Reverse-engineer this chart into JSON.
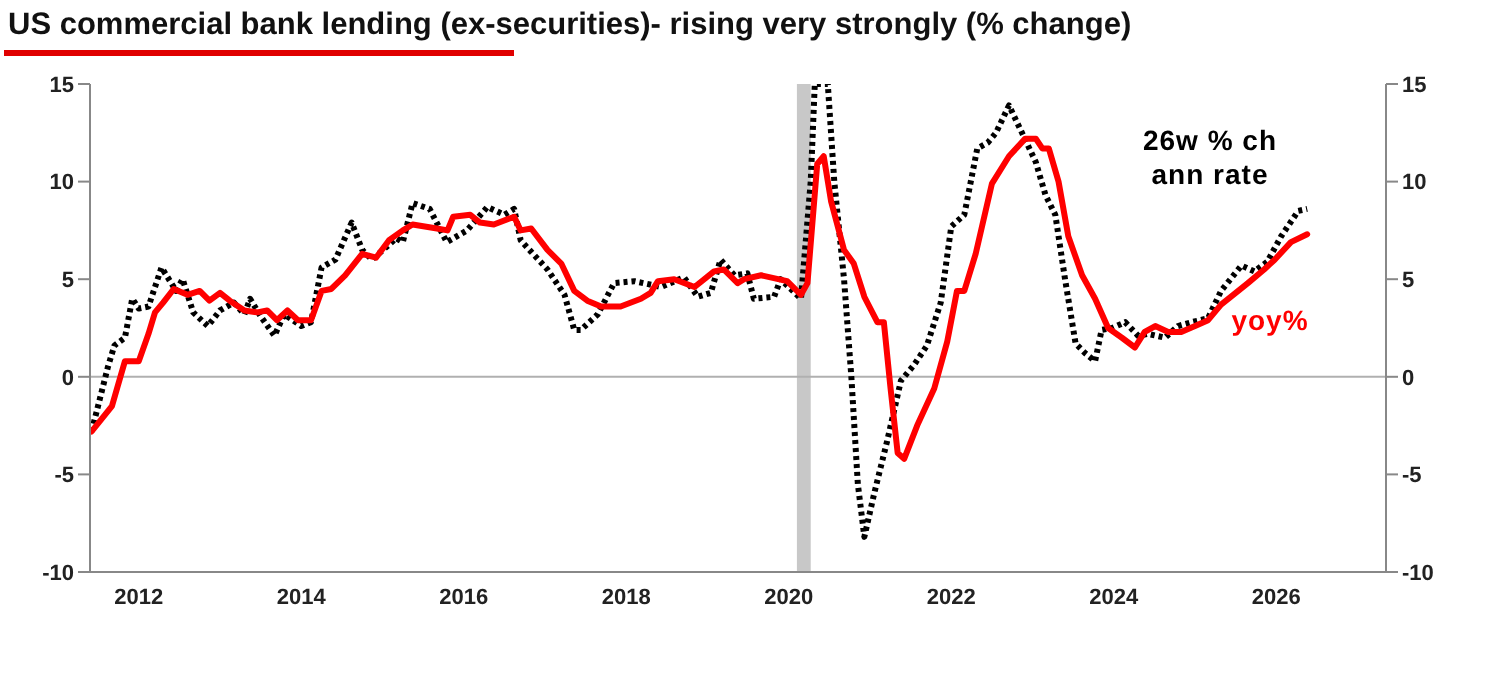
{
  "chart_data": {
    "type": "line",
    "title": "US commercial bank lending (ex-securities)- rising very strongly (% change)",
    "xlim": [
      2011.4,
      2027.35
    ],
    "xticks": [
      2012,
      2014,
      2016,
      2018,
      2020,
      2022,
      2024,
      2026
    ],
    "ylim": [
      -10,
      15
    ],
    "yticks": [
      -10,
      -5,
      0,
      5,
      10,
      15
    ],
    "y2lim": [
      -10,
      15
    ],
    "y2ticks": [
      -10,
      -5,
      0,
      5,
      10,
      15
    ],
    "legend": false,
    "marker": "none",
    "ref_lines": [
      {
        "axis": "y",
        "value": 0,
        "color": "#b0b0b0"
      }
    ],
    "bands": [
      {
        "axis": "x",
        "from": 2020.1,
        "to": 2020.27,
        "color": "#c8c8c8"
      }
    ],
    "series": [
      {
        "name": "26w % ch ann rate",
        "color": "#000000",
        "line_style": "dotted",
        "x": [
          2011.42,
          2011.62,
          2011.7,
          2011.83,
          2011.92,
          2012.0,
          2012.12,
          2012.28,
          2012.46,
          2012.54,
          2012.67,
          2012.85,
          2013.0,
          2013.17,
          2013.3,
          2013.37,
          2013.5,
          2013.67,
          2013.79,
          2014.0,
          2014.12,
          2014.25,
          2014.42,
          2014.62,
          2014.75,
          2014.87,
          2015.17,
          2015.25,
          2015.37,
          2015.58,
          2015.79,
          2016.04,
          2016.29,
          2016.5,
          2016.62,
          2016.7,
          2016.83,
          2017.03,
          2017.24,
          2017.36,
          2017.44,
          2017.65,
          2017.85,
          2018.1,
          2018.43,
          2018.71,
          2018.88,
          2019.04,
          2019.16,
          2019.33,
          2019.49,
          2019.57,
          2019.82,
          2019.9,
          2020.15,
          2020.27,
          2020.32,
          2020.48,
          2020.56,
          2020.68,
          2020.77,
          2020.85,
          2020.93,
          2021.05,
          2021.21,
          2021.38,
          2021.54,
          2021.7,
          2021.87,
          2022.0,
          2022.16,
          2022.32,
          2022.45,
          2022.55,
          2022.71,
          2022.87,
          2023.04,
          2023.16,
          2023.28,
          2023.4,
          2023.53,
          2023.65,
          2023.77,
          2023.85,
          2023.98,
          2024.14,
          2024.3,
          2024.42,
          2024.63,
          2024.79,
          2024.96,
          2025.16,
          2025.32,
          2025.57,
          2025.73,
          2025.89,
          2026.06,
          2026.27,
          2026.38
        ],
        "values": [
          -2.8,
          0.5,
          1.6,
          2.0,
          4.0,
          3.5,
          3.6,
          5.6,
          4.4,
          5.0,
          3.3,
          2.6,
          3.4,
          3.8,
          3.2,
          4.0,
          3.1,
          2.1,
          3.2,
          2.6,
          2.8,
          5.6,
          6.0,
          7.9,
          6.5,
          6.0,
          7.1,
          6.9,
          8.9,
          8.6,
          6.9,
          7.5,
          8.7,
          8.3,
          8.6,
          7.0,
          6.4,
          5.5,
          4.2,
          2.4,
          2.4,
          3.2,
          4.8,
          4.9,
          4.6,
          5.1,
          4.1,
          4.3,
          6.0,
          5.2,
          5.3,
          4.0,
          4.1,
          5.0,
          4.0,
          10.0,
          15,
          15,
          10.0,
          5.0,
          0,
          -5.5,
          -8.2,
          -6.0,
          -3.3,
          -0.2,
          0.6,
          1.6,
          3.8,
          7.7,
          8.3,
          11.7,
          12.0,
          12.5,
          13.9,
          12.5,
          11.0,
          9.3,
          8.3,
          5.0,
          1.7,
          1.2,
          0.8,
          2.4,
          2.5,
          2.8,
          2.1,
          2.2,
          2.0,
          2.6,
          2.8,
          3.0,
          4.4,
          5.7,
          5.4,
          5.9,
          7.2,
          8.5,
          8.6
        ]
      },
      {
        "name": "yoy%",
        "color": "#ff0000",
        "line_style": "solid",
        "x": [
          2011.42,
          2011.67,
          2011.83,
          2012.0,
          2012.12,
          2012.2,
          2012.3,
          2012.43,
          2012.6,
          2012.75,
          2012.87,
          2013.0,
          2013.12,
          2013.3,
          2013.46,
          2013.58,
          2013.7,
          2013.83,
          2013.96,
          2014.12,
          2014.25,
          2014.37,
          2014.54,
          2014.75,
          2014.92,
          2015.08,
          2015.25,
          2015.37,
          2015.67,
          2015.8,
          2015.87,
          2016.08,
          2016.2,
          2016.37,
          2016.62,
          2016.7,
          2016.83,
          2017.03,
          2017.2,
          2017.36,
          2017.52,
          2017.69,
          2017.93,
          2018.18,
          2018.3,
          2018.39,
          2018.59,
          2018.84,
          2019.08,
          2019.2,
          2019.37,
          2019.45,
          2019.66,
          2019.98,
          2020.15,
          2020.23,
          2020.35,
          2020.43,
          2020.52,
          2020.68,
          2020.8,
          2020.93,
          2021.09,
          2021.17,
          2021.25,
          2021.34,
          2021.42,
          2021.58,
          2021.79,
          2021.95,
          2022.07,
          2022.16,
          2022.3,
          2022.5,
          2022.71,
          2022.91,
          2023.04,
          2023.12,
          2023.2,
          2023.32,
          2023.44,
          2023.61,
          2023.77,
          2023.93,
          2024.1,
          2024.26,
          2024.38,
          2024.51,
          2024.67,
          2024.83,
          2025.0,
          2025.16,
          2025.32,
          2025.47,
          2025.65,
          2025.85,
          2025.98,
          2026.18,
          2026.38
        ],
        "values": [
          -2.8,
          -1.5,
          0.8,
          0.8,
          2.2,
          3.3,
          3.8,
          4.5,
          4.2,
          4.4,
          3.9,
          4.3,
          3.9,
          3.4,
          3.3,
          3.4,
          2.9,
          3.4,
          2.9,
          2.9,
          4.4,
          4.5,
          5.2,
          6.3,
          6.1,
          7.0,
          7.5,
          7.8,
          7.6,
          7.5,
          8.2,
          8.3,
          7.9,
          7.8,
          8.2,
          7.5,
          7.6,
          6.5,
          5.8,
          4.4,
          3.9,
          3.6,
          3.6,
          4.0,
          4.3,
          4.9,
          5.0,
          4.6,
          5.4,
          5.5,
          4.8,
          5.0,
          5.2,
          4.9,
          4.2,
          4.8,
          10.9,
          11.3,
          9.0,
          6.5,
          5.8,
          4.1,
          2.8,
          2.8,
          -0.5,
          -3.9,
          -4.2,
          -2.5,
          -0.6,
          1.8,
          4.4,
          4.4,
          6.3,
          9.9,
          11.3,
          12.2,
          12.2,
          11.7,
          11.7,
          10.0,
          7.2,
          5.2,
          4.0,
          2.5,
          2.0,
          1.5,
          2.3,
          2.6,
          2.3,
          2.3,
          2.6,
          2.9,
          3.7,
          4.2,
          4.8,
          5.5,
          6.0,
          6.9,
          7.3
        ]
      }
    ]
  }
}
